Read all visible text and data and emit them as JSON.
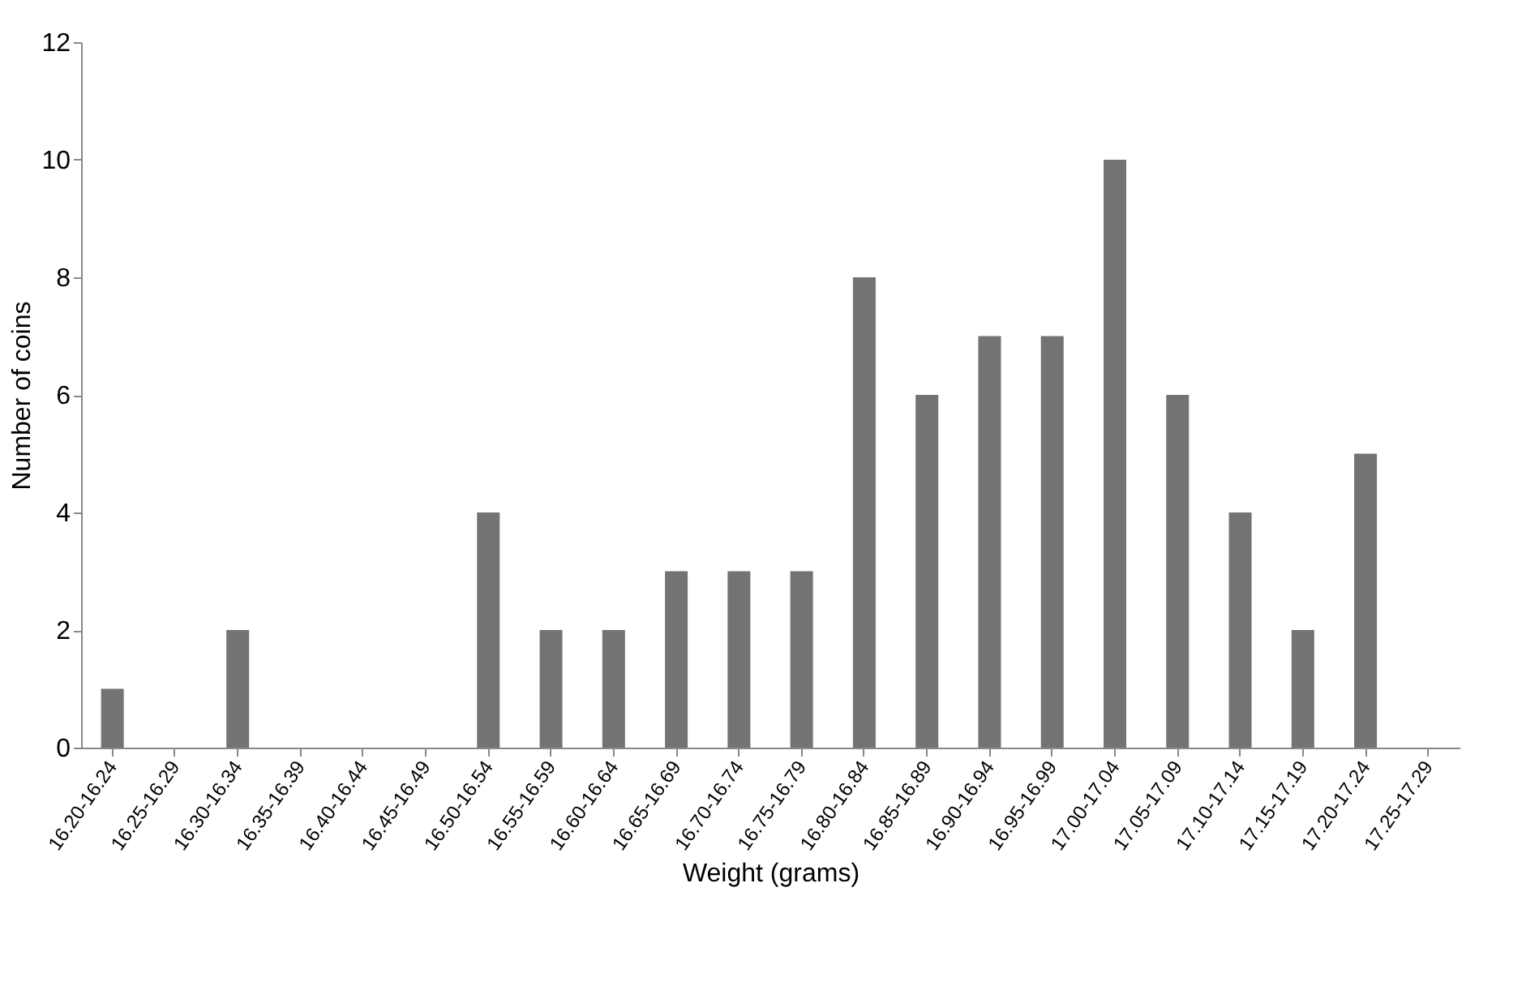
{
  "chart_data": {
    "type": "bar",
    "xlabel": "Weight (grams)",
    "ylabel": "Number of coins",
    "categories": [
      "16.20-16.24",
      "16.25-16.29",
      "16.30-16.34",
      "16.35-16.39",
      "16.40-16.44",
      "16.45-16.49",
      "16.50-16.54",
      "16.55-16.59",
      "16.60-16.64",
      "16.65-16.69",
      "16.70-16.74",
      "16.75-16.79",
      "16.80-16.84",
      "16.85-16.89",
      "16.90-16.94",
      "16.95-16.99",
      "17.00-17.04",
      "17.05-17.09",
      "17.10-17.14",
      "17.15-17.19",
      "17.20-17.24",
      "17.25-17.29"
    ],
    "values": [
      1,
      0,
      2,
      0,
      0,
      0,
      4,
      2,
      2,
      3,
      3,
      3,
      8,
      6,
      7,
      7,
      10,
      6,
      4,
      2,
      5,
      0
    ],
    "color": "#737373",
    "ylim": [
      0,
      12
    ],
    "yticks": [
      0,
      2,
      4,
      6,
      8,
      10,
      12
    ],
    "grid": false
  }
}
